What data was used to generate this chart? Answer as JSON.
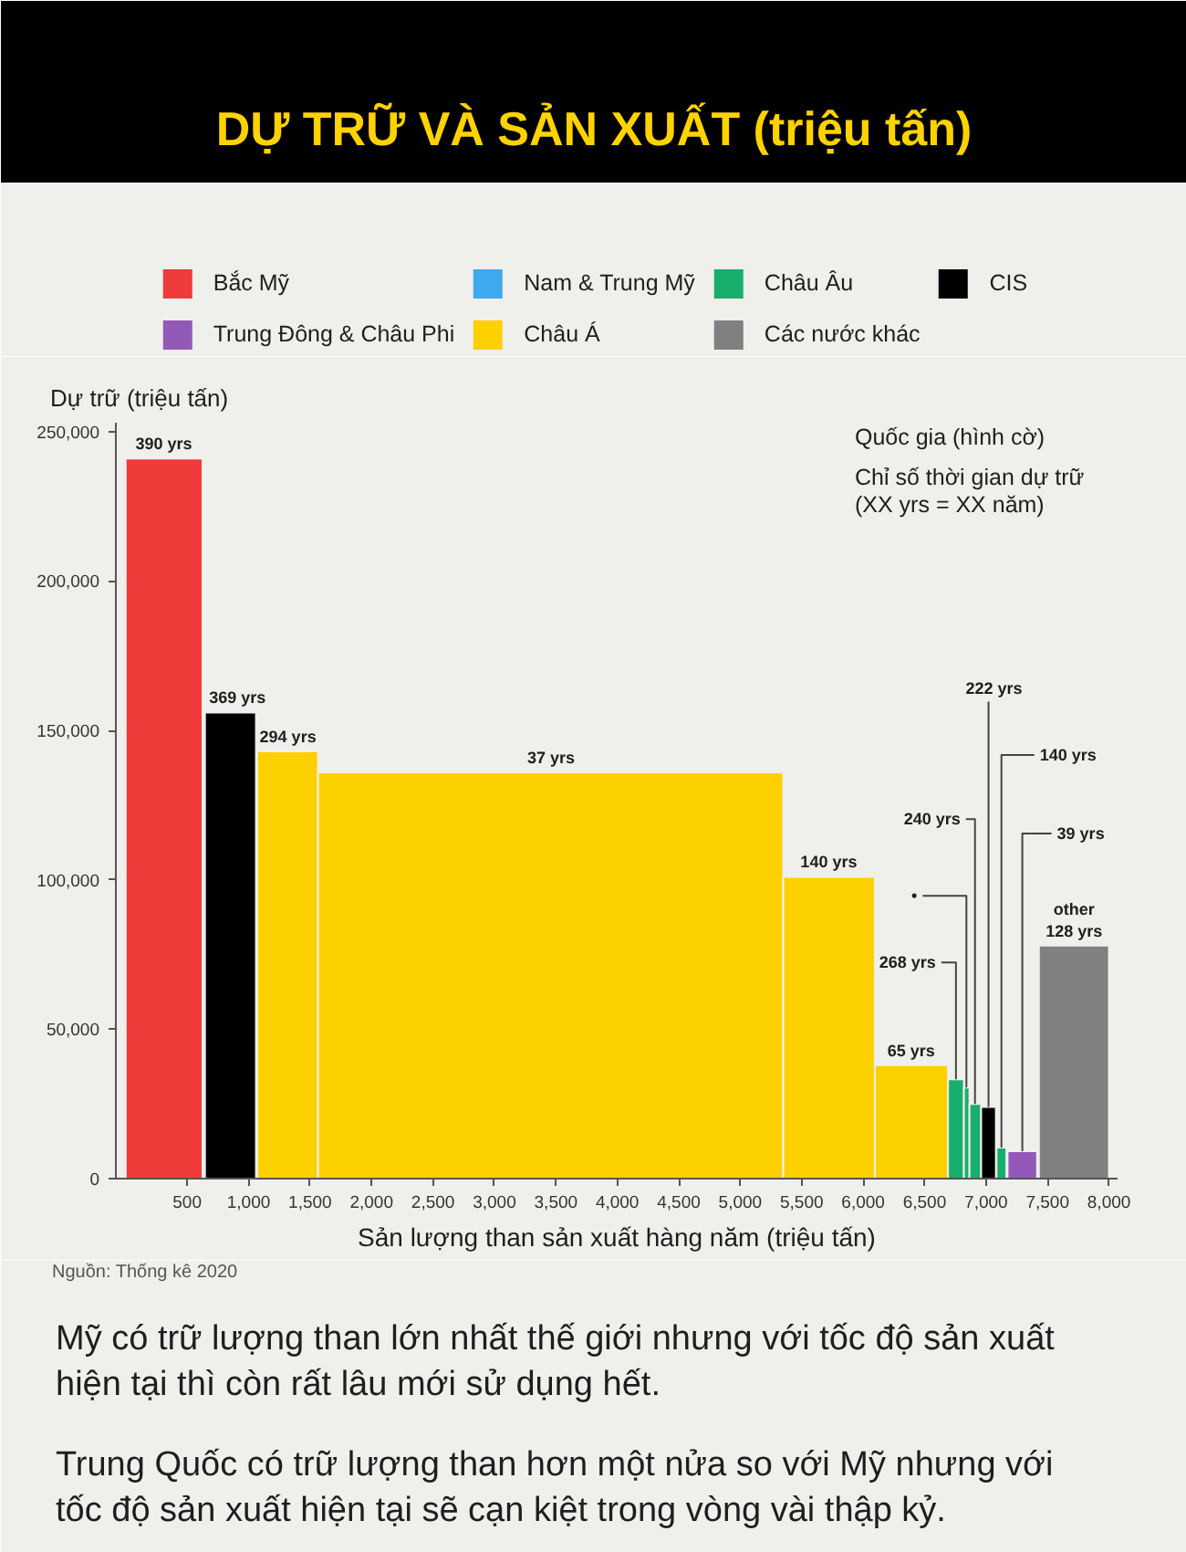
{
  "chart_data": {
    "type": "area",
    "title": "DỰ TRỮ VÀ SẢN XUẤT (triệu tấn)",
    "xlabel": "Sản lượng than sản xuất hàng năm (triệu tấn)",
    "ylabel": "Dự trữ (triệu tấn)",
    "series": [
      {
        "name": "Bắc Mỹ",
        "color": "#ef3b39",
        "x": [
          0,
          625
        ],
        "values": [
          241000,
          241000
        ]
      },
      {
        "name": "Nam & Trung Mỹ",
        "color": "#3ea9ee"
      },
      {
        "name": "Châu Âu",
        "color": "#18ae6c",
        "x": [
          6690,
          6820,
          6820,
          6865,
          6865,
          6960
        ],
        "values": [
          33200,
          33200,
          30500,
          30500,
          25000,
          25000
        ]
      },
      {
        "color": "#18ae6c",
        "x": [
          7085,
          7165
        ],
        "values": [
          10400,
          10400
        ]
      },
      {
        "name": "CIS",
        "color": "#000000",
        "x": [
          645,
          1060
        ],
        "values": [
          156000,
          156000
        ]
      },
      {
        "color": "#000000",
        "x": [
          6960,
          7080
        ],
        "values": [
          24000,
          24000
        ]
      },
      {
        "name": "Trung Đông & Châu Phi",
        "color": "#9259b8",
        "x": [
          7175,
          7415
        ],
        "values": [
          9200,
          9200
        ]
      },
      {
        "name": "Châu Á",
        "color": "#fdd000",
        "x": [
          1070,
          1565,
          1565,
          5350,
          5350,
          6095,
          6095,
          6690
        ],
        "values": [
          143000,
          143000,
          136000,
          136000,
          101000,
          101000,
          38000,
          38000
        ]
      },
      {
        "name": "Các nước khác",
        "color": "#808080",
        "x": [
          7430,
          8000
        ],
        "values": [
          78000,
          78000
        ]
      }
    ],
    "xlim": [
      -80,
      8070
    ],
    "ylim": [
      0,
      253000
    ],
    "xticks": [
      500,
      {
        "value": 1000,
        "label": "1,000"
      },
      {
        "value": 1500,
        "label": "1,500"
      },
      {
        "value": 2000,
        "label": "2,000"
      },
      {
        "value": 2500,
        "label": "2,500"
      },
      {
        "value": 3000,
        "label": "3,000"
      },
      {
        "value": 3500,
        "label": "3,500"
      },
      {
        "value": 4000,
        "label": "4,000"
      },
      {
        "value": 4500,
        "label": "4,500"
      },
      {
        "value": 5000,
        "label": "5,000"
      },
      {
        "value": 5500,
        "label": "5,500"
      },
      {
        "value": 6000,
        "label": "6,000"
      },
      {
        "value": 6500,
        "label": "6,500"
      },
      {
        "value": 7000,
        "label": "7,000"
      },
      {
        "value": 7500,
        "label": "7,500"
      },
      {
        "value": 8000,
        "label": "8,000"
      }
    ],
    "yticks": [
      0,
      {
        "value": 50000,
        "label": "50,000"
      },
      {
        "value": 100000,
        "label": "100,000"
      },
      {
        "value": 150000,
        "label": "150,000"
      },
      {
        "value": 200000,
        "label": "200,000"
      },
      {
        "value": 250000,
        "label": "250,000"
      }
    ],
    "grid": false,
    "legend": "top",
    "annotations": [
      {
        "text": "390 yrs",
        "x": 310,
        "y": 241000
      },
      {
        "text": "369 yrs",
        "x": 850,
        "y": 156000
      },
      {
        "text": "294 yrs",
        "x": 1320,
        "y": 143000
      },
      {
        "text": "37 yrs",
        "x": 3460,
        "y": 136000
      },
      {
        "text": "140 yrs",
        "x": 5720,
        "y": 101000
      },
      {
        "text": "65 yrs",
        "x": 6390,
        "y": 38000
      },
      {
        "text": "268 yrs",
        "x": 6755,
        "y": 33200
      },
      {
        "text": "•",
        "x": 6840,
        "y": 30500
      },
      {
        "text": "240 yrs",
        "x": 6910,
        "y": 25000
      },
      {
        "text": "222 yrs",
        "x": 7020,
        "y": 24000
      },
      {
        "text": "140 yrs",
        "x": 7125,
        "y": 10400
      },
      {
        "text": "39 yrs",
        "x": 7295,
        "y": 9200
      },
      {
        "text": "other\n128 yrs",
        "x": 7715,
        "y": 78000
      },
      "Quốc gia (hình cờ)",
      "Chỉ số thời gian dự trữ (XX yrs = XX năm)",
      "Nguồn: Thống kê 2020",
      "Mỹ có trữ lượng than lớn nhất thế giới nhưng với tốc độ sản xuất hiện tại thì còn rất lâu mới sử dụng hết.",
      "Trung Quốc có trữ lượng than hơn một nửa so với Mỹ nhưng với tốc độ sản xuất hiện tại sẽ cạn kiệt trong vòng vài thập kỷ."
    ]
  }
}
